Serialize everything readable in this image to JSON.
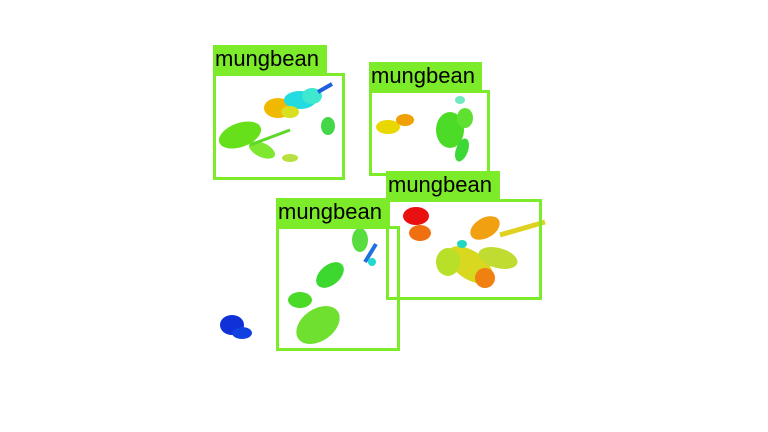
{
  "detections": [
    {
      "label": "mungbean"
    },
    {
      "label": "mungbean"
    },
    {
      "label": "mungbean"
    },
    {
      "label": "mungbean"
    }
  ],
  "colors": {
    "box": "#7CEB2A",
    "background": "#ffffff"
  }
}
